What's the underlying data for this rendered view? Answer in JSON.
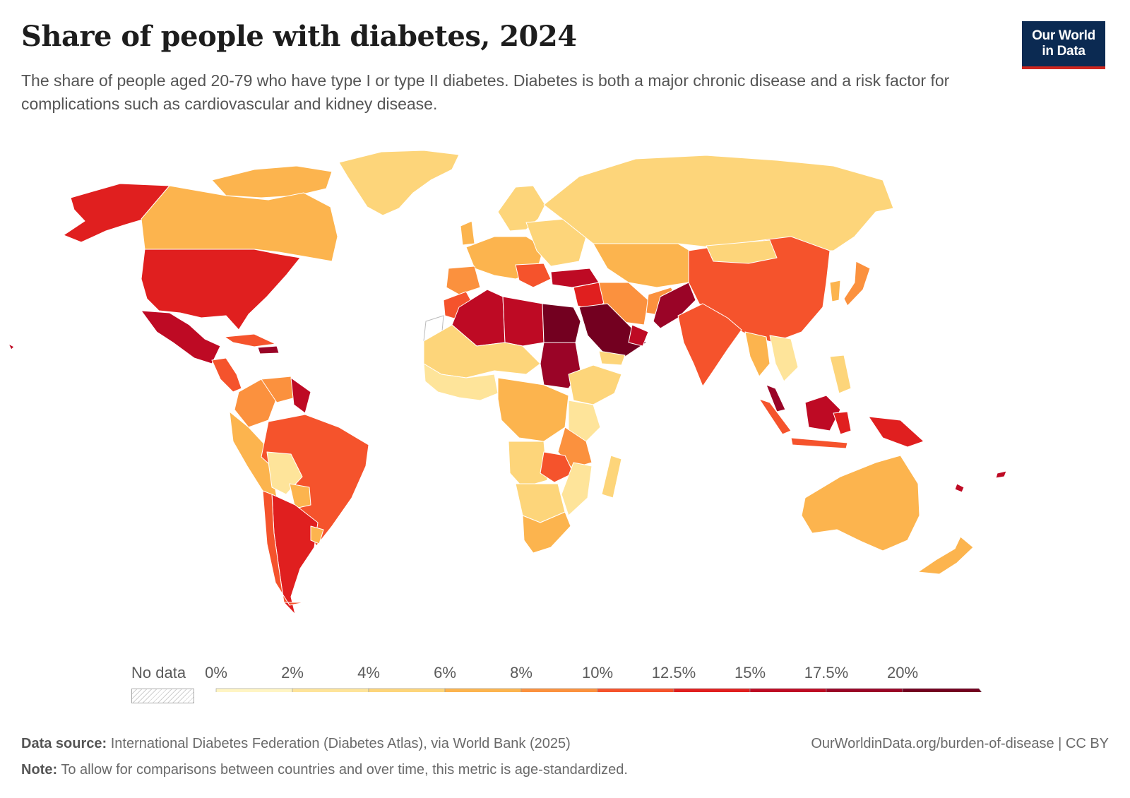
{
  "header": {
    "title": "Share of people with diabetes, 2024",
    "subtitle": "The share of people aged 20-79 who have type I or type II diabetes. Diabetes is both a major chronic disease and a risk factor for complications such as cardiovascular and kidney disease."
  },
  "logo": {
    "line1": "Our World",
    "line2": "in Data",
    "bg": "#0b2a52",
    "accent": "#ce261e"
  },
  "legend": {
    "no_data_label": "No data",
    "tick_labels": [
      "0%",
      "2%",
      "4%",
      "6%",
      "8%",
      "10%",
      "12.5%",
      "15%",
      "17.5%",
      "20%"
    ],
    "bins": [
      {
        "from": 0,
        "to": 2,
        "color": "#fff5c4"
      },
      {
        "from": 2,
        "to": 4,
        "color": "#fee49a"
      },
      {
        "from": 4,
        "to": 6,
        "color": "#fdd57a"
      },
      {
        "from": 6,
        "to": 8,
        "color": "#fcb44e"
      },
      {
        "from": 8,
        "to": 10,
        "color": "#fb913e"
      },
      {
        "from": 10,
        "to": 12.5,
        "color": "#f5532c"
      },
      {
        "from": 12.5,
        "to": 15,
        "color": "#e01f1f"
      },
      {
        "from": 15,
        "to": 17.5,
        "color": "#be0a24"
      },
      {
        "from": 17.5,
        "to": 20,
        "color": "#9a0427"
      },
      {
        "from": 20,
        "to": null,
        "color": "#730020"
      }
    ]
  },
  "footer": {
    "source_label": "Data source:",
    "source_text": "International Diabetes Federation (Diabetes Atlas), via World Bank (2025)",
    "url_text": "OurWorldinData.org/burden-of-disease | CC BY",
    "note_label": "Note:",
    "note_text": "To allow for comparisons between countries and over time, this metric is age-standardized."
  }
}
